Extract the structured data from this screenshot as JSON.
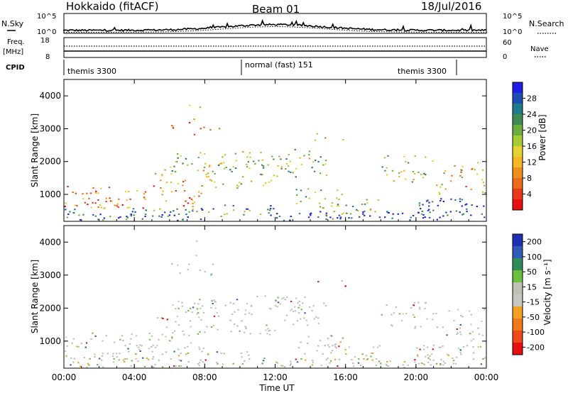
{
  "header": {
    "station": "Hokkaido (fitACF)",
    "beam": "Beam 01",
    "date": "18/Jul/2016"
  },
  "sky_panel": {
    "left_label": "N.Sky",
    "right_label": "N.Search",
    "left_ticks": [
      "10^5",
      "10^0"
    ],
    "right_ticks": [
      "10^5",
      "10^0"
    ]
  },
  "freq_panel": {
    "label_line1": "Freq.",
    "label_line2": "[MHz]",
    "right_label": "Nave",
    "left_ticks": [
      "18",
      "8"
    ],
    "right_ticks": [
      "60",
      "0"
    ]
  },
  "cpid_panel": {
    "label": "CPID",
    "modes": [
      {
        "text": "themis 3300",
        "start_hour": 0
      },
      {
        "text": "normal (fast) 151",
        "start_hour": 10
      },
      {
        "text": "themis 3300",
        "start_hour": 22
      }
    ]
  },
  "chart_data": [
    {
      "type": "heatmap",
      "name": "power",
      "ylabel": "Slant Range [km]",
      "ylim": [
        180,
        4500
      ],
      "yticks": [
        1000,
        2000,
        3000,
        4000
      ],
      "xlim_hours": [
        0,
        24
      ],
      "colorbar": {
        "label": "Power [dB]",
        "tick_labels": [
          "4",
          "8",
          "12",
          "16",
          "20",
          "24",
          "28"
        ],
        "colors": [
          "#1e1ee6",
          "#1c4fb0",
          "#1f7a8c",
          "#3f8a4f",
          "#6aae3e",
          "#a6cb33",
          "#e6d232",
          "#f6b624",
          "#f0901c",
          "#ec6a1a",
          "#e83a18",
          "#e61010"
        ]
      }
    },
    {
      "type": "heatmap",
      "name": "velocity",
      "ylabel": "Slant Range [km]",
      "ylim": [
        180,
        4500
      ],
      "yticks": [
        1000,
        2000,
        3000,
        4000
      ],
      "xlim_hours": [
        0,
        24
      ],
      "colorbar": {
        "label": "Velocity [m s⁻¹]",
        "tick_labels": [
          "200",
          "100",
          "50",
          "15",
          "-15",
          "-50",
          "-100",
          "-200"
        ],
        "colors": [
          "#1e2fb4",
          "#2f5ab8",
          "#2e8c5a",
          "#6cc040",
          "#c0c0b4",
          "#c8c8c0",
          "#f5a020",
          "#f07818",
          "#ec4a18",
          "#e61010"
        ]
      }
    }
  ],
  "x_axis": {
    "ticks": [
      "00:00",
      "04:00",
      "08:00",
      "12:00",
      "16:00",
      "20:00",
      "00:00"
    ],
    "label": "Time UT"
  }
}
